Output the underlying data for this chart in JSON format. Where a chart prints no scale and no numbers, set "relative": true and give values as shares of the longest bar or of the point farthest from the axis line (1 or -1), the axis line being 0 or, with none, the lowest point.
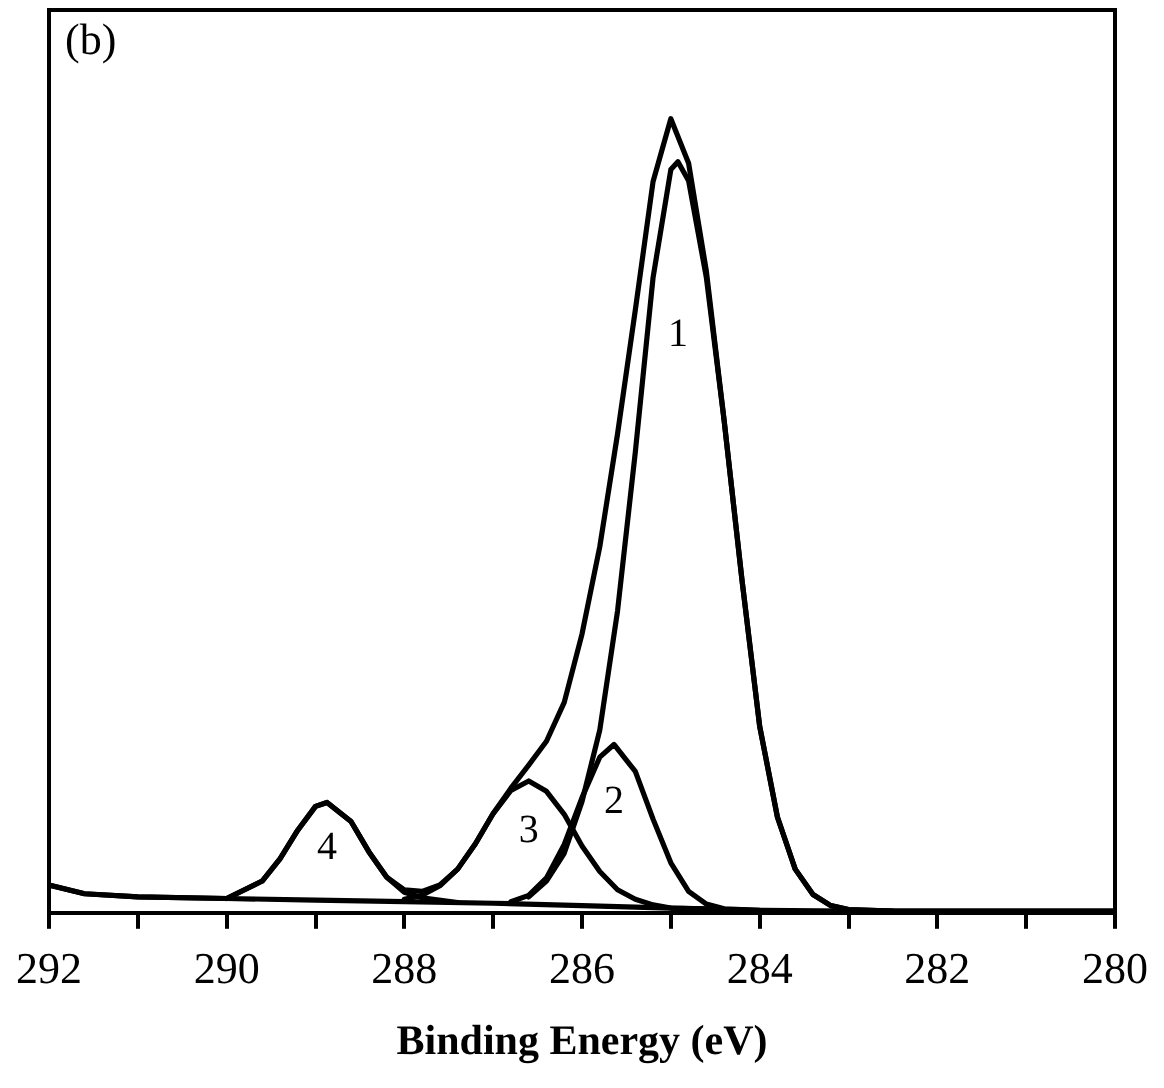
{
  "chart_data": {
    "type": "line",
    "relative": true,
    "xlabel": "Binding Energy (eV)",
    "xlim": [
      292,
      280
    ],
    "xticks": [
      292,
      {
        "value": 291,
        "label": null
      },
      290,
      {
        "value": 289,
        "label": null
      },
      288,
      {
        "value": 287,
        "label": null
      },
      286,
      {
        "value": 285,
        "label": null
      },
      284,
      {
        "value": 283,
        "label": null
      },
      282,
      {
        "value": 281,
        "label": null
      },
      280
    ],
    "marker": "none",
    "line_style": "solid",
    "legend": false,
    "annotations": [
      "(b)"
    ],
    "series": [
      {
        "color": "#000000",
        "x": [
          292,
          291.6,
          291,
          290,
          289.6,
          289.4,
          289.2,
          289,
          288.87,
          288.6,
          288.4,
          288.2,
          288,
          287.8,
          287.6,
          287.4,
          287.2,
          287,
          286.8,
          286.6,
          286.4,
          286.2,
          286,
          285.8,
          285.6,
          285.4,
          285.2,
          285,
          284.8,
          284.6,
          284.4,
          284.2,
          284,
          283.8,
          283.6,
          283.4,
          283.2,
          283,
          282.5,
          280
        ],
        "values": [
          0.035,
          0.024,
          0.02,
          0.018,
          0.04,
          0.068,
          0.104,
          0.134,
          0.139,
          0.115,
          0.077,
          0.045,
          0.029,
          0.027,
          0.035,
          0.055,
          0.087,
          0.125,
          0.157,
          0.186,
          0.216,
          0.265,
          0.351,
          0.461,
          0.603,
          0.759,
          0.921,
          1,
          0.944,
          0.808,
          0.62,
          0.42,
          0.235,
          0.121,
          0.055,
          0.023,
          0.009,
          0.004,
          0.002,
          0.002
        ]
      },
      {
        "color": "#000000",
        "x": [
          292,
          291.6,
          291,
          290,
          289,
          288,
          287,
          286,
          285,
          284,
          283,
          280
        ],
        "values": [
          0.035,
          0.024,
          0.02,
          0.018,
          0.016,
          0.014,
          0.012,
          0.009,
          0.006,
          0.003,
          0.002,
          0.002
        ]
      },
      {
        "name": "1",
        "color": "#000000",
        "x": [
          286.6,
          286.4,
          286.2,
          286,
          285.8,
          285.6,
          285.4,
          285.2,
          285,
          284.92,
          284.8,
          284.6,
          284.4,
          284.2,
          284,
          283.8,
          283.6,
          283.4,
          283.2,
          283,
          282.5
        ],
        "values": [
          0.02,
          0.04,
          0.075,
          0.14,
          0.23,
          0.38,
          0.58,
          0.8,
          0.936,
          0.946,
          0.922,
          0.8,
          0.62,
          0.42,
          0.235,
          0.12,
          0.055,
          0.023,
          0.009,
          0.004,
          0.002
        ]
      },
      {
        "name": "2",
        "color": "#000000",
        "x": [
          286.8,
          286.6,
          286.4,
          286.2,
          286,
          285.8,
          285.64,
          285.4,
          285.2,
          285,
          284.8,
          284.6,
          284.4,
          284
        ],
        "values": [
          0.014,
          0.022,
          0.044,
          0.086,
          0.145,
          0.196,
          0.212,
          0.178,
          0.118,
          0.063,
          0.027,
          0.011,
          0.005,
          0.003
        ]
      },
      {
        "name": "3",
        "color": "#000000",
        "x": [
          288,
          287.8,
          287.6,
          287.4,
          287.2,
          287,
          286.8,
          286.6,
          286.4,
          286.2,
          286,
          285.8,
          285.6,
          285.4,
          285.2,
          285,
          284.6
        ],
        "values": [
          0.017,
          0.022,
          0.034,
          0.055,
          0.087,
          0.125,
          0.154,
          0.166,
          0.153,
          0.124,
          0.084,
          0.052,
          0.029,
          0.017,
          0.01,
          0.006,
          0.005
        ]
      },
      {
        "name": "4",
        "color": "#000000",
        "x": [
          290,
          289.6,
          289.4,
          289.2,
          289,
          288.87,
          288.6,
          288.4,
          288.2,
          288,
          287.8,
          287.4
        ],
        "values": [
          0.018,
          0.04,
          0.068,
          0.104,
          0.134,
          0.139,
          0.115,
          0.077,
          0.045,
          0.026,
          0.019,
          0.013
        ]
      }
    ]
  }
}
